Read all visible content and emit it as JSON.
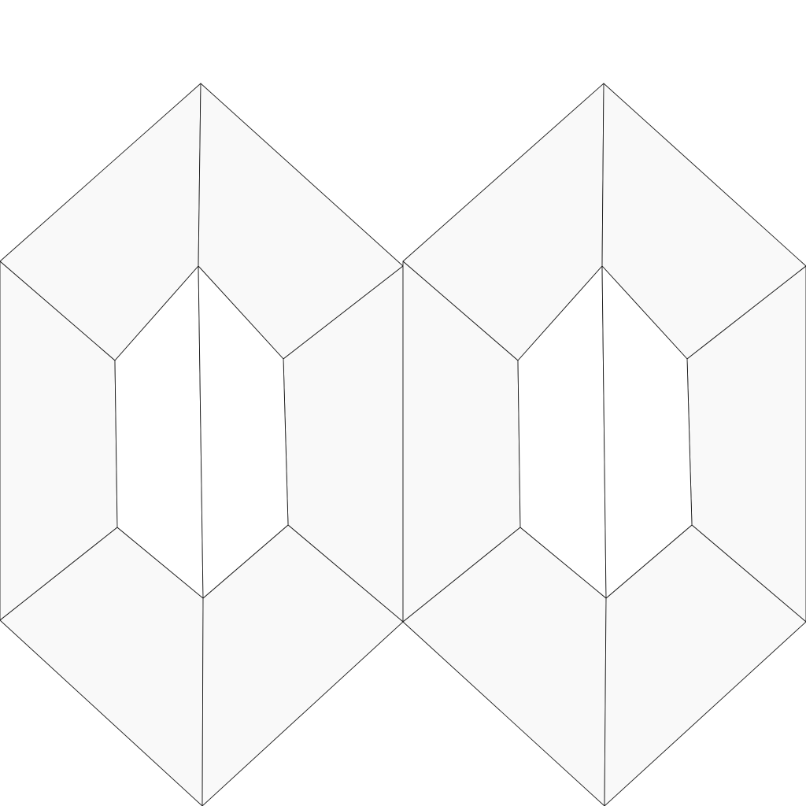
{
  "colors": {
    "background": "#ffffff",
    "outer_facet_fill": "#f9f9f9",
    "inner_facet_fill": "#ffffff",
    "edge_stroke": "#1a1a1a"
  },
  "figure": {
    "shape": "two adjacent faceted hexagonal prisms (wireframe)",
    "tile_count": 2
  }
}
